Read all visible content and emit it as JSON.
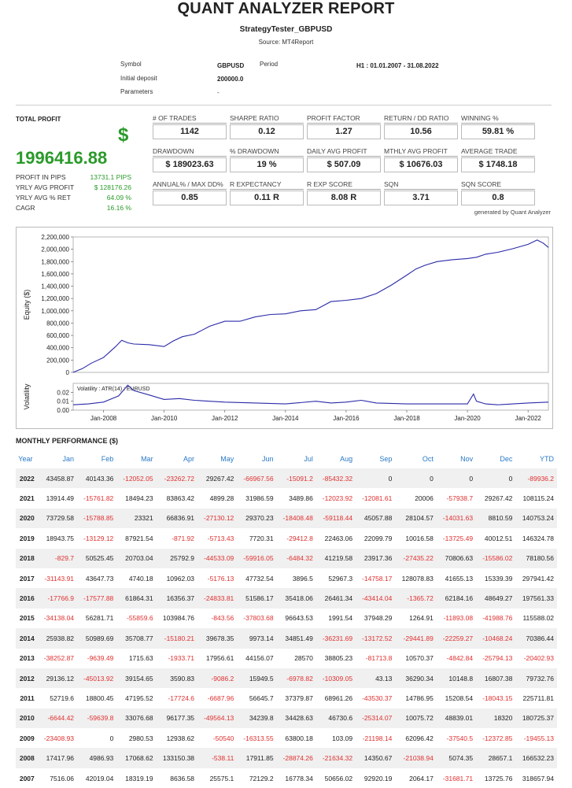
{
  "header": {
    "title": "QUANT ANALYZER REPORT",
    "subtitle": "StrategyTester_GBPUSD",
    "source": "Source: MT4Report"
  },
  "info": {
    "symbol_label": "Symbol",
    "symbol_value": "GBPUSD",
    "period_label": "Period",
    "period_value": "H1 : 01.01.2007 - 31.08.2022",
    "deposit_label": "Initial deposit",
    "deposit_value": "200000.0",
    "params_label": "Parameters",
    "params_value": "-"
  },
  "summary": {
    "total_profit_label": "TOTAL PROFIT",
    "dollar": "$",
    "total_profit_value": "1996416.88",
    "stats": [
      {
        "label": "PROFIT IN PIPS",
        "value": "13731.1 PIPS"
      },
      {
        "label": "YRLY AVG PROFIT",
        "value": "$ 128176.26"
      },
      {
        "label": "YRLY AVG % RET",
        "value": "64.09 %"
      },
      {
        "label": "CAGR",
        "value": "16.16 %"
      }
    ],
    "boxes": [
      {
        "label": "# OF TRADES",
        "value": "1142"
      },
      {
        "label": "SHARPE RATIO",
        "value": "0.12"
      },
      {
        "label": "PROFIT FACTOR",
        "value": "1.27"
      },
      {
        "label": "RETURN / DD RATIO",
        "value": "10.56"
      },
      {
        "label": "WINNING %",
        "value": "59.81 %"
      },
      {
        "label": "DRAWDOWN",
        "value": "$ 189023.63"
      },
      {
        "label": "% DRAWDOWN",
        "value": "19 %"
      },
      {
        "label": "DAILY AVG PROFIT",
        "value": "$ 507.09"
      },
      {
        "label": "MTHLY AVG PROFIT",
        "value": "$ 10676.03"
      },
      {
        "label": "AVERAGE TRADE",
        "value": "$ 1748.18"
      },
      {
        "label": "ANNUAL% / MAX DD%",
        "value": "0.85"
      },
      {
        "label": "R EXPECTANCY",
        "value": "0.11 R"
      },
      {
        "label": "R EXP SCORE",
        "value": "8.08 R"
      },
      {
        "label": "SQN",
        "value": "3.71"
      },
      {
        "label": "SQN SCORE",
        "value": "0.8"
      }
    ],
    "generated": "generated by Quant Analyzer"
  },
  "colors": {
    "line": "#2a2aa8",
    "positive": "#2a9a2a",
    "negative": "#e03030",
    "header": "#2979c6"
  },
  "chart_data": [
    {
      "type": "line",
      "ylabel": "Equity ($)",
      "ylim": [
        0,
        2200000
      ],
      "yticks": [
        0,
        200000,
        400000,
        600000,
        800000,
        1000000,
        1200000,
        1400000,
        1600000,
        1800000,
        2000000,
        2200000
      ],
      "ytick_labels": [
        "0",
        "200,000",
        "400,000",
        "600,000",
        "800,000",
        "1,000,000",
        "1,200,000",
        "1,400,000",
        "1,600,000",
        "1,800,000",
        "2,000,000",
        "2,200,000"
      ],
      "xlim": [
        2007.0,
        2022.67
      ],
      "x": [
        2007.0,
        2007.3,
        2007.6,
        2008.0,
        2008.2,
        2008.4,
        2008.6,
        2008.8,
        2009.0,
        2009.5,
        2010.0,
        2010.3,
        2010.6,
        2011.0,
        2011.5,
        2012.0,
        2012.5,
        2013.0,
        2013.5,
        2014.0,
        2014.5,
        2015.0,
        2015.5,
        2016.0,
        2016.5,
        2017.0,
        2017.5,
        2018.0,
        2018.3,
        2018.6,
        2019.0,
        2019.5,
        2020.0,
        2020.3,
        2020.6,
        2021.0,
        2021.5,
        2022.0,
        2022.3,
        2022.5,
        2022.67
      ],
      "y": [
        0,
        60000,
        150000,
        240000,
        330000,
        420000,
        520000,
        480000,
        460000,
        450000,
        420000,
        510000,
        580000,
        620000,
        750000,
        830000,
        830000,
        900000,
        940000,
        950000,
        1000000,
        1020000,
        1150000,
        1170000,
        1200000,
        1280000,
        1420000,
        1580000,
        1680000,
        1740000,
        1800000,
        1830000,
        1850000,
        1870000,
        1920000,
        1950000,
        2010000,
        2080000,
        2150000,
        2100000,
        2030000
      ]
    },
    {
      "type": "line",
      "ylabel": "Volatility",
      "legend": "Volatility : ATR(14) : EURUSD",
      "ylim": [
        0,
        0.03
      ],
      "yticks": [
        0,
        0.01,
        0.02
      ],
      "ytick_labels": [
        "0.00",
        "0.01",
        "0.02"
      ],
      "xlim": [
        2007.0,
        2022.67
      ],
      "x": [
        2007.0,
        2007.5,
        2008.0,
        2008.5,
        2008.8,
        2009.0,
        2009.5,
        2010.0,
        2010.5,
        2011.0,
        2011.5,
        2012.0,
        2013.0,
        2014.0,
        2015.0,
        2015.5,
        2016.0,
        2016.5,
        2017.0,
        2018.0,
        2019.0,
        2020.0,
        2020.2,
        2020.3,
        2020.6,
        2021.0,
        2022.0,
        2022.67
      ],
      "y": [
        0.006,
        0.007,
        0.009,
        0.016,
        0.028,
        0.022,
        0.017,
        0.012,
        0.013,
        0.011,
        0.01,
        0.009,
        0.008,
        0.007,
        0.01,
        0.008,
        0.009,
        0.011,
        0.008,
        0.007,
        0.007,
        0.007,
        0.018,
        0.01,
        0.007,
        0.006,
        0.008,
        0.009
      ],
      "xtick_labels": [
        "Jan-2008",
        "Jan-2010",
        "Jan-2012",
        "Jan-2014",
        "Jan-2016",
        "Jan-2018",
        "Jan-2020",
        "Jan-2022"
      ],
      "xticks": [
        2008,
        2010,
        2012,
        2014,
        2016,
        2018,
        2020,
        2022
      ]
    }
  ],
  "monthly": {
    "title": "MONTHLY PERFORMANCE ($)",
    "columns": [
      "Year",
      "Jan",
      "Feb",
      "Mar",
      "Apr",
      "May",
      "Jun",
      "Jul",
      "Aug",
      "Sep",
      "Oct",
      "Nov",
      "Dec",
      "YTD"
    ],
    "rows": [
      [
        "2022",
        "43458.87",
        "40143.36",
        "-12052.05",
        "-23262.72",
        "29267.42",
        "-66967.56",
        "-15091.2",
        "-85432.32",
        "0",
        "0",
        "0",
        "0",
        "-89936.2"
      ],
      [
        "2021",
        "13914.49",
        "-15761.82",
        "18494.23",
        "83863.42",
        "4899.28",
        "31986.59",
        "3489.86",
        "-12023.92",
        "-12081.61",
        "20006",
        "-57938.7",
        "29267.42",
        "108115.24"
      ],
      [
        "2020",
        "73729.58",
        "-15788.85",
        "23321",
        "66836.91",
        "-27130.12",
        "29370.23",
        "-18408.48",
        "-59118.44",
        "45057.88",
        "28104.57",
        "-14031.63",
        "8810.59",
        "140753.24"
      ],
      [
        "2019",
        "18943.75",
        "-13129.12",
        "87921.54",
        "-871.92",
        "-5713.43",
        "7720.31",
        "-29412.8",
        "22463.06",
        "22099.79",
        "10016.58",
        "-13725.49",
        "40012.51",
        "146324.78"
      ],
      [
        "2018",
        "-829.7",
        "50525.45",
        "20703.04",
        "25792.9",
        "-44533.09",
        "-59916.05",
        "-6484.32",
        "41219.58",
        "23917.36",
        "-27435.22",
        "70806.63",
        "-15586.02",
        "78180.56"
      ],
      [
        "2017",
        "-31143.91",
        "43647.73",
        "4740.18",
        "10962.03",
        "-5176.13",
        "47732.54",
        "3896.5",
        "52967.3",
        "-14758.17",
        "128078.83",
        "41655.13",
        "15339.39",
        "297941.42"
      ],
      [
        "2016",
        "-17766.9",
        "-17577.88",
        "61864.31",
        "16356.37",
        "-24833.81",
        "51586.17",
        "35418.06",
        "26461.34",
        "-43414.04",
        "-1365.72",
        "62184.16",
        "48649.27",
        "197561.33"
      ],
      [
        "2015",
        "-34138.04",
        "56281.71",
        "-55859.6",
        "103984.76",
        "-843.56",
        "-37803.68",
        "96643.53",
        "1991.54",
        "37948.29",
        "1264.91",
        "-11893.08",
        "-41988.76",
        "115588.02"
      ],
      [
        "2014",
        "25938.82",
        "50989.69",
        "35708.77",
        "-15180.21",
        "39678.35",
        "9973.14",
        "34851.49",
        "-36231.69",
        "-13172.52",
        "-29441.89",
        "-22259.27",
        "-10468.24",
        "70386.44"
      ],
      [
        "2013",
        "-38252.87",
        "-9639.49",
        "1715.63",
        "-1933.71",
        "17956.61",
        "44156.07",
        "28570",
        "38805.23",
        "-81713.8",
        "10570.37",
        "-4842.84",
        "-25794.13",
        "-20402.93"
      ],
      [
        "2012",
        "29136.12",
        "-45013.92",
        "39154.65",
        "3590.83",
        "-9086.2",
        "15949.5",
        "-6978.82",
        "-10309.05",
        "43.13",
        "36290.34",
        "10148.8",
        "16807.38",
        "79732.76"
      ],
      [
        "2011",
        "52719.6",
        "18800.45",
        "47195.52",
        "-17724.6",
        "-6687.96",
        "56645.7",
        "37379.87",
        "68961.26",
        "-43530.37",
        "14786.95",
        "15208.54",
        "-18043.15",
        "225711.81"
      ],
      [
        "2010",
        "-6644.42",
        "-59639.8",
        "33076.68",
        "96177.35",
        "-49564.13",
        "34239.8",
        "34428.63",
        "46730.6",
        "-25314.07",
        "10075.72",
        "48839.01",
        "18320",
        "180725.37"
      ],
      [
        "2009",
        "-23408.93",
        "0",
        "2980.53",
        "12938.62",
        "-50540",
        "-16313.55",
        "63800.18",
        "103.09",
        "-21198.14",
        "62096.42",
        "-37540.5",
        "-12372.85",
        "-19455.13"
      ],
      [
        "2008",
        "17417.96",
        "4986.93",
        "17068.62",
        "133150.38",
        "-538.11",
        "17911.85",
        "-28874.26",
        "-21634.32",
        "14350.67",
        "-21038.94",
        "5074.35",
        "28657.1",
        "166532.23"
      ],
      [
        "2007",
        "7516.06",
        "42019.04",
        "18319.19",
        "8636.58",
        "25575.1",
        "72129.2",
        "16778.34",
        "50656.02",
        "92920.19",
        "2064.17",
        "-31681.71",
        "13725.76",
        "318657.94"
      ]
    ]
  }
}
